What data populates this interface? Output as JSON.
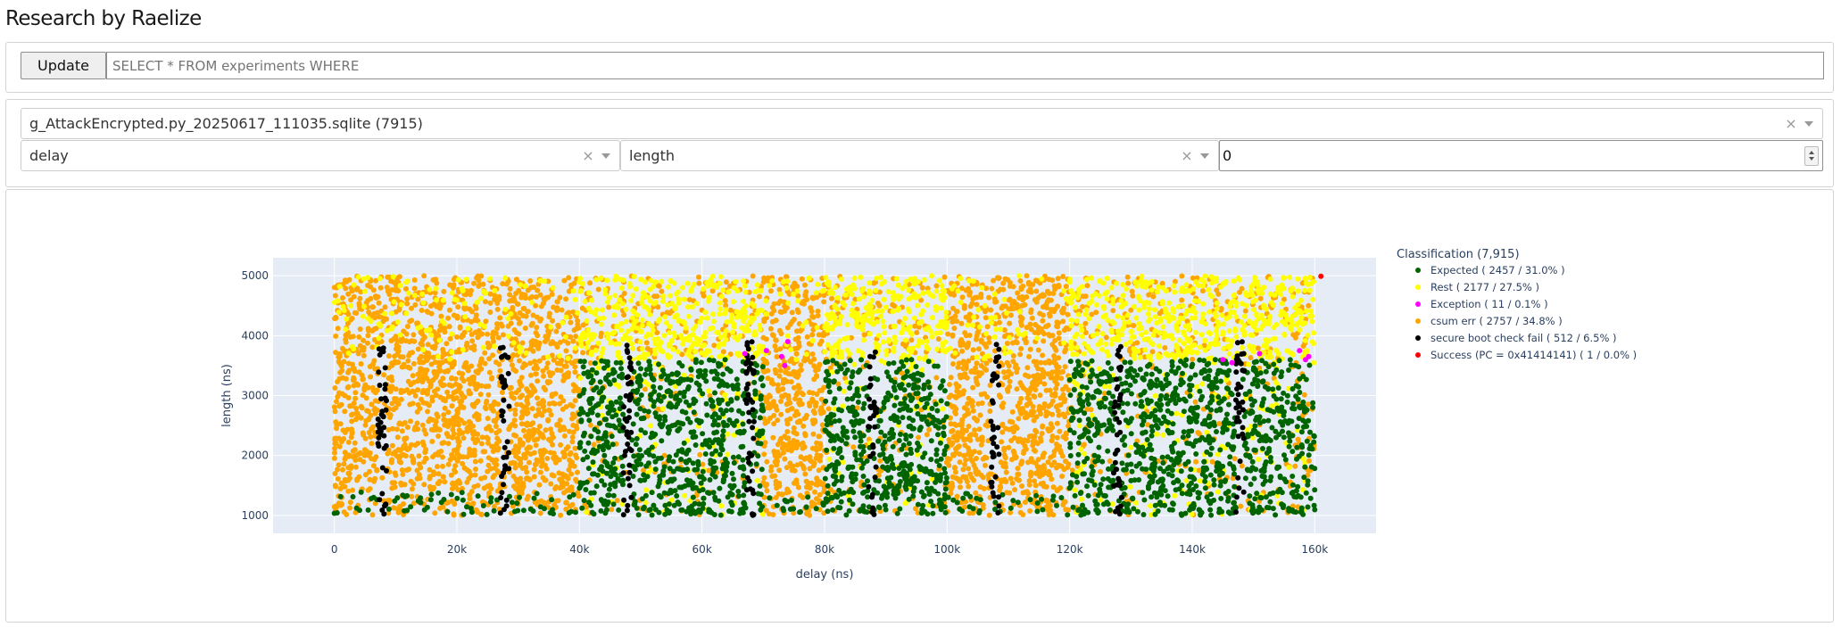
{
  "app": {
    "title": "Research by Raelize"
  },
  "query": {
    "update_label": "Update",
    "placeholder": "SELECT * FROM experiments WHERE",
    "value": ""
  },
  "selectors": {
    "database": "g_AttackEncrypted.py_20250617_111035.sqlite (7915)",
    "x_axis": "delay",
    "y_axis": "length",
    "number_value": "0",
    "clear_glyph": "×"
  },
  "chart_data": {
    "type": "scatter",
    "xlabel": "delay (ns)",
    "ylabel": "length (ns)",
    "xlim": [
      -10000,
      170000
    ],
    "ylim": [
      700,
      5300
    ],
    "x_ticks": [
      0,
      20000,
      40000,
      60000,
      80000,
      100000,
      120000,
      140000,
      160000
    ],
    "x_tick_labels": [
      "0",
      "20k",
      "40k",
      "60k",
      "80k",
      "100k",
      "120k",
      "140k",
      "160k"
    ],
    "y_ticks": [
      1000,
      2000,
      3000,
      4000,
      5000
    ],
    "y_tick_labels": [
      "1000",
      "2000",
      "3000",
      "4000",
      "5000"
    ],
    "grid": true,
    "legend_position": "right",
    "legend_title": "Classification (7,915)",
    "series": [
      {
        "name": "Expected ( 2457 / 31.0% )",
        "color": "#006400",
        "count": 2457
      },
      {
        "name": "Rest ( 2177 / 27.5% )",
        "color": "#ffff00",
        "count": 2177
      },
      {
        "name": "Exception ( 11 / 0.1% )",
        "color": "#ff00ff",
        "count": 11
      },
      {
        "name": "csum err ( 2757 / 34.8% )",
        "color": "#ffa500",
        "count": 2757
      },
      {
        "name": "secure boot check fail ( 512 / 6.5% )",
        "color": "#000000",
        "count": 512
      },
      {
        "name": "Success (PC = 0x41414141) ( 1 / 0.0% )",
        "color": "#ff0000",
        "count": 1,
        "points": [
          [
            161000,
            4990
          ]
        ]
      }
    ]
  }
}
